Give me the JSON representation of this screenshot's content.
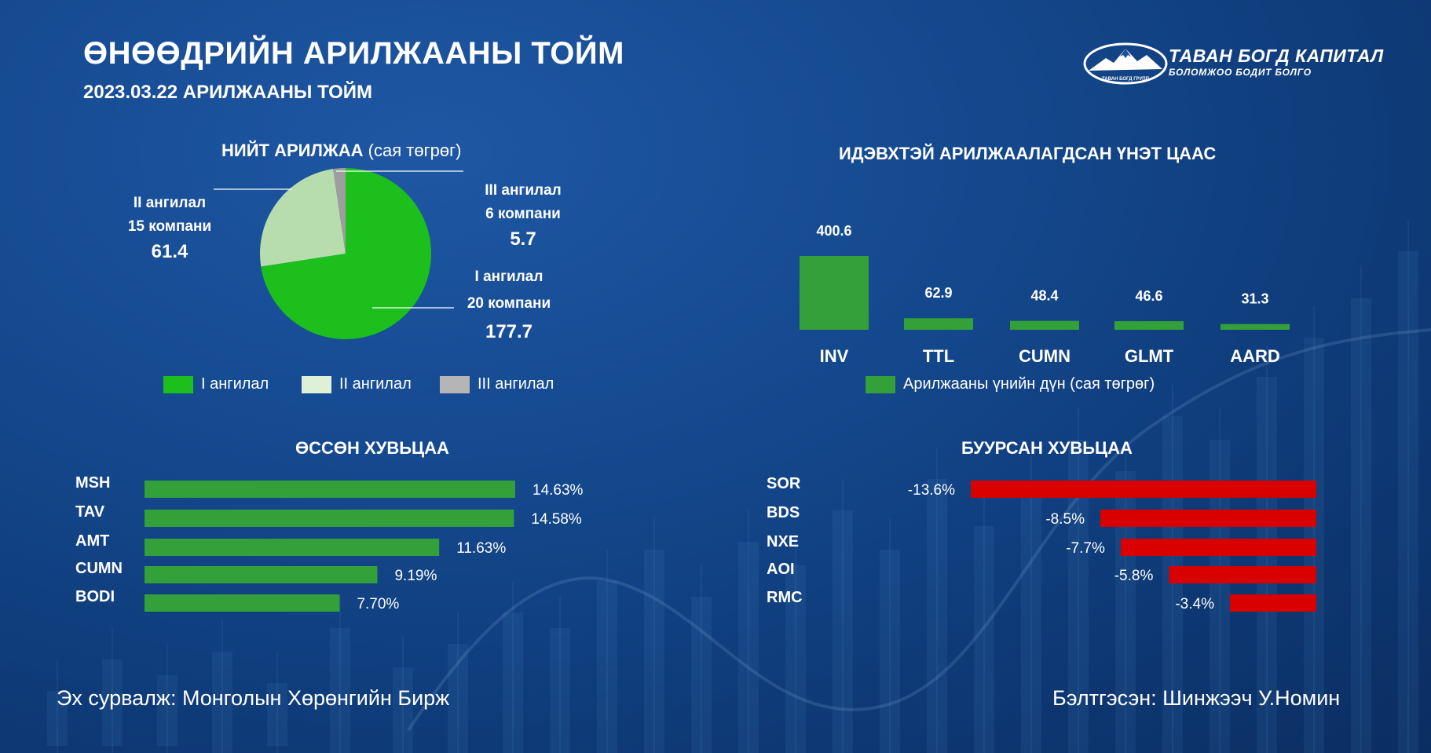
{
  "header": {
    "title": "ӨНӨӨДРИЙН АРИЛЖААНЫ ТОЙМ",
    "subtitle": "2023.03.22 АРИЛЖААНЫ ТОЙМ"
  },
  "logo": {
    "name": "ТАВАН БОГД КАПИТАЛ",
    "slogan": "БОЛОМЖОО БОДИТ БОЛГО",
    "badge_text": "ТАВАН БОГД ГРУПП"
  },
  "colors": {
    "accent_green": "#33a03a",
    "pie_green": "#1cbf1c",
    "pie_light": "#b7dcae",
    "pie_gray": "#9e9e9e",
    "decline_red": "#d90000"
  },
  "footer": {
    "source": "Эх сурвалж: Монголын Хөрөнгийн Бирж",
    "prepared_by": "Бэлтгэсэн: Шинжээч У.Номин"
  },
  "chart_data": [
    {
      "type": "pie",
      "title": "НИЙТ АРИЛЖАА",
      "subtitle": "(сая төгрөг)",
      "slices": [
        {
          "name": "I ангилал",
          "line1": "I ангилал",
          "line2": "20 компани",
          "value": 177.7,
          "value_label": "177.7",
          "color": "#1cbf1c"
        },
        {
          "name": "II ангилал",
          "line1": "II ангилал",
          "line2": "15 компани",
          "value": 61.4,
          "value_label": "61.4",
          "color": "#b7dcae"
        },
        {
          "name": "III ангилал",
          "line1": "III ангилал",
          "line2": "6 компани",
          "value": 5.7,
          "value_label": "5.7",
          "color": "#9e9e9e"
        }
      ],
      "legend": [
        {
          "label": "I ангилал",
          "color": "#1cbf1c"
        },
        {
          "label": "II ангилал",
          "color": "#dff0d8"
        },
        {
          "label": "III ангилал",
          "color": "#b5b5b5"
        }
      ],
      "legend_position": "bottom"
    },
    {
      "type": "bar",
      "title": "ИДЭВХТЭЙ АРИЛЖААЛАГДСАН ҮНЭТ ЦААС",
      "categories": [
        "INV",
        "TTL",
        "CUMN",
        "GLMT",
        "AARD"
      ],
      "series": [
        {
          "name": "Арилжааны үнийн дүн (сая төгрөг)",
          "values": [
            400.6,
            62.9,
            48.4,
            46.6,
            31.3
          ],
          "value_labels": [
            "400.6",
            "62.9",
            "48.4",
            "46.6",
            "31.3"
          ],
          "color": "#33a03a"
        }
      ],
      "legend_position": "bottom",
      "grid": false
    },
    {
      "type": "bar",
      "orientation": "horizontal",
      "title": "ӨССӨН ХУВЬЦАА",
      "categories": [
        "MSH",
        "TAV",
        "AMT",
        "CUMN",
        "BODI"
      ],
      "values": [
        14.63,
        14.58,
        11.63,
        9.19,
        7.7
      ],
      "value_labels": [
        "14.63%",
        "14.58%",
        "11.63%",
        "9.19%",
        "7.70%"
      ],
      "color": "#33a03a",
      "grid": false
    },
    {
      "type": "bar",
      "orientation": "horizontal",
      "title": "БУУРСАН ХУВЬЦАА",
      "categories": [
        "SOR",
        "BDS",
        "NXE",
        "AOI",
        "RMC"
      ],
      "values": [
        -13.6,
        -8.5,
        -7.7,
        -5.8,
        -3.4
      ],
      "value_labels": [
        "-13.6%",
        "-8.5%",
        "-7.7%",
        "-5.8%",
        "-3.4%"
      ],
      "color": "#d90000",
      "grid": false
    }
  ]
}
